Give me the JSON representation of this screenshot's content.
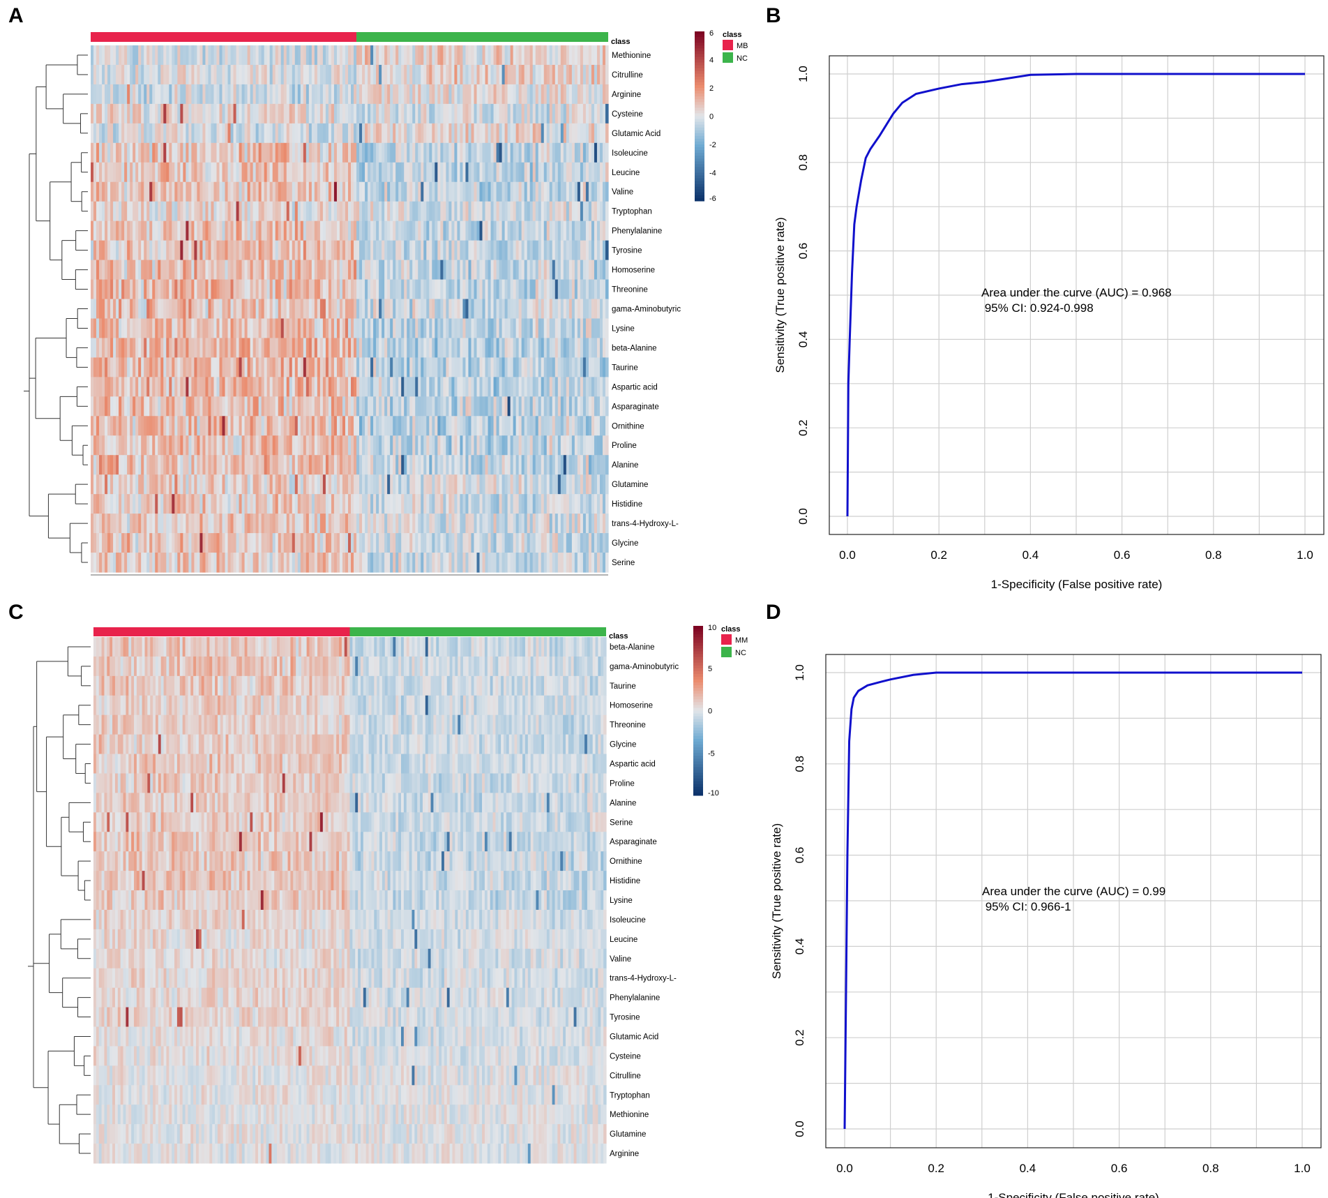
{
  "panels": {
    "a": {
      "letter": "A",
      "chart_data": {
        "type": "heatmap",
        "annotation_label": "class",
        "legend_title": "class",
        "groups": [
          {
            "name": "MB",
            "color": "#e8234c"
          },
          {
            "name": "NC",
            "color": "#3cb44b"
          }
        ],
        "group_sizes": [
          95,
          90
        ],
        "colorbar": {
          "min": -6,
          "max": 6,
          "ticks": [
            "6",
            "4",
            "2",
            "0",
            "-2",
            "-4",
            "-6"
          ]
        },
        "rows": [
          "Methionine",
          "Citrulline",
          "Arginine",
          "Cysteine",
          "Glutamic Acid",
          "Isoleucine",
          "Leucine",
          "Valine",
          "Tryptophan",
          "Phenylalanine",
          "Tyrosine",
          "Homoserine",
          "Threonine",
          "gama-Aminobutyric",
          "Lysine",
          "beta-Alanine",
          "Taurine",
          "Aspartic acid",
          "Asparaginate",
          "Ornithine",
          "Proline",
          "Alanine",
          "Glutamine",
          "Histidine",
          "trans-4-Hydroxy-L-",
          "Glycine",
          "Serine"
        ],
        "row_means_mb": [
          -0.3,
          -0.2,
          -0.4,
          0.2,
          -0.2,
          0.8,
          0.8,
          0.8,
          0.3,
          0.9,
          0.9,
          1.0,
          1.0,
          1.0,
          1.0,
          1.1,
          1.2,
          1.1,
          1.0,
          1.1,
          1.0,
          1.0,
          0.4,
          0.6,
          0.6,
          0.7,
          0.7
        ],
        "row_means_nc": [
          0.5,
          0.5,
          0.3,
          -0.2,
          0.3,
          -0.6,
          -0.6,
          -0.6,
          -0.2,
          -0.6,
          -0.6,
          -0.6,
          -0.6,
          -0.5,
          -0.6,
          -0.7,
          -0.8,
          -0.7,
          -0.7,
          -0.8,
          -0.7,
          -0.7,
          -0.3,
          -0.4,
          -0.3,
          -0.4,
          -0.4
        ]
      }
    },
    "b": {
      "letter": "B",
      "chart_data": {
        "type": "line",
        "x": [
          0.0,
          0.002,
          0.005,
          0.01,
          0.015,
          0.02,
          0.03,
          0.04,
          0.05,
          0.07,
          0.1,
          0.12,
          0.15,
          0.2,
          0.25,
          0.3,
          0.35,
          0.4,
          0.5,
          0.6,
          0.7,
          0.8,
          0.9,
          1.0
        ],
        "y": [
          0.0,
          0.3,
          0.4,
          0.55,
          0.66,
          0.7,
          0.76,
          0.81,
          0.83,
          0.86,
          0.91,
          0.935,
          0.955,
          0.967,
          0.977,
          0.982,
          0.99,
          0.998,
          1.0,
          1.0,
          1.0,
          1.0,
          1.0,
          1.0
        ],
        "xlabel": "1-Specificity (False positive rate)",
        "ylabel": "Sensitivity (True positive rate)",
        "xlim": [
          0,
          1
        ],
        "ylim": [
          0,
          1
        ],
        "ticks": [
          "0.0",
          "0.2",
          "0.4",
          "0.6",
          "0.8",
          "1.0"
        ],
        "grid": true,
        "line_color": "#1010cc",
        "annotation": [
          "Area under the curve (AUC) = 0.968",
          " 95% CI: 0.924-0.998"
        ]
      }
    },
    "c": {
      "letter": "C",
      "chart_data": {
        "type": "heatmap",
        "annotation_label": "class",
        "legend_title": "class",
        "groups": [
          {
            "name": "MM",
            "color": "#e8234c"
          },
          {
            "name": "NC",
            "color": "#3cb44b"
          }
        ],
        "group_sizes": [
          95,
          95
        ],
        "colorbar": {
          "min": -10,
          "max": 10,
          "ticks": [
            "10",
            "5",
            "0",
            "-5",
            "-10"
          ]
        },
        "rows": [
          "beta-Alanine",
          "gama-Aminobutyric",
          "Taurine",
          "Homoserine",
          "Threonine",
          "Glycine",
          "Aspartic acid",
          "Proline",
          "Alanine",
          "Serine",
          "Asparaginate",
          "Ornithine",
          "Histidine",
          "Lysine",
          "Isoleucine",
          "Leucine",
          "Valine",
          "trans-4-Hydroxy-L-",
          "Phenylalanine",
          "Tyrosine",
          "Glutamic Acid",
          "Cysteine",
          "Citrulline",
          "Tryptophan",
          "Methionine",
          "Glutamine",
          "Arginine"
        ],
        "row_means_mm": [
          1.2,
          1.3,
          1.3,
          1.0,
          1.0,
          1.1,
          1.2,
          1.1,
          1.1,
          1.1,
          1.3,
          1.3,
          1.3,
          1.2,
          0.6,
          0.6,
          0.6,
          0.7,
          0.7,
          0.7,
          0.4,
          0.4,
          0.2,
          0.2,
          0.1,
          0.1,
          0.0
        ],
        "row_means_nc": [
          -0.7,
          -0.7,
          -0.7,
          -0.7,
          -0.7,
          -0.7,
          -0.8,
          -0.8,
          -0.8,
          -0.8,
          -0.9,
          -0.9,
          -0.9,
          -0.9,
          -0.5,
          -0.5,
          -0.5,
          -0.5,
          -0.5,
          -0.5,
          -0.3,
          -0.3,
          -0.1,
          -0.1,
          0.0,
          0.0,
          0.1
        ]
      }
    },
    "d": {
      "letter": "D",
      "chart_data": {
        "type": "line",
        "x": [
          0.0,
          0.003,
          0.006,
          0.01,
          0.015,
          0.02,
          0.03,
          0.05,
          0.08,
          0.1,
          0.15,
          0.2,
          0.3,
          0.4,
          0.5,
          0.6,
          0.7,
          0.8,
          0.9,
          1.0
        ],
        "y": [
          0.0,
          0.3,
          0.6,
          0.85,
          0.92,
          0.945,
          0.96,
          0.972,
          0.98,
          0.985,
          0.995,
          1.0,
          1.0,
          1.0,
          1.0,
          1.0,
          1.0,
          1.0,
          1.0,
          1.0
        ],
        "xlabel": "1-Specificity (False positive rate)",
        "ylabel": "Sensitivity (True positive rate)",
        "xlim": [
          0,
          1
        ],
        "ylim": [
          0,
          1
        ],
        "ticks": [
          "0.0",
          "0.2",
          "0.4",
          "0.6",
          "0.8",
          "1.0"
        ],
        "grid": true,
        "line_color": "#1010cc",
        "annotation": [
          "Area under the curve (AUC) = 0.99",
          " 95% CI: 0.966-1"
        ]
      }
    }
  }
}
